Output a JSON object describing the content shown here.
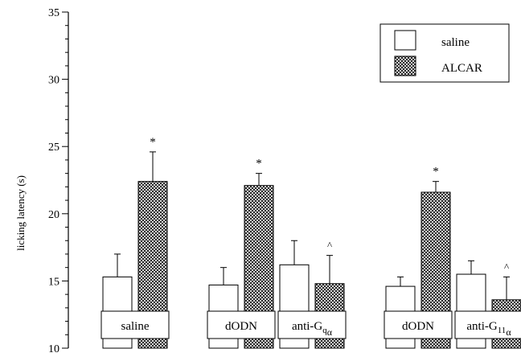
{
  "chart_data": {
    "type": "bar",
    "ylabel": "licking latency (s)",
    "ylim": [
      10,
      35
    ],
    "yticks": [
      10,
      15,
      20,
      25,
      30,
      35
    ],
    "grid": false,
    "legend_placement": "top-right",
    "series": [
      {
        "name": "saline",
        "fill": "plain",
        "color": "#ffffff"
      },
      {
        "name": "ALCAR",
        "fill": "cross-hatched",
        "color": "#888888"
      }
    ],
    "groups": [
      {
        "label": "saline",
        "label_base": "saline",
        "label_sub": "",
        "label_sub2": "",
        "values": [
          15.3,
          22.4
        ],
        "errors": [
          1.7,
          2.2
        ],
        "marks": [
          "",
          "*"
        ]
      },
      {
        "label": "dODN",
        "label_base": "dODN",
        "label_sub": "",
        "label_sub2": "",
        "values": [
          14.7,
          22.1
        ],
        "errors": [
          1.3,
          0.9
        ],
        "marks": [
          "",
          "*"
        ]
      },
      {
        "label": "anti-Gqα",
        "label_base": "anti-G",
        "label_sub": "q",
        "label_sub2": "α",
        "values": [
          16.2,
          14.8
        ],
        "errors": [
          1.8,
          2.1
        ],
        "marks": [
          "",
          "^"
        ]
      },
      {
        "label": "dODN",
        "label_base": "dODN",
        "label_sub": "",
        "label_sub2": "",
        "values": [
          14.6,
          21.6
        ],
        "errors": [
          0.7,
          0.8
        ],
        "marks": [
          "",
          "*"
        ]
      },
      {
        "label": "anti-G11α",
        "label_base": "anti-G",
        "label_sub": "11",
        "label_sub2": "α",
        "values": [
          15.5,
          13.6
        ],
        "errors": [
          1.0,
          1.7
        ],
        "marks": [
          "",
          "^"
        ]
      }
    ]
  }
}
